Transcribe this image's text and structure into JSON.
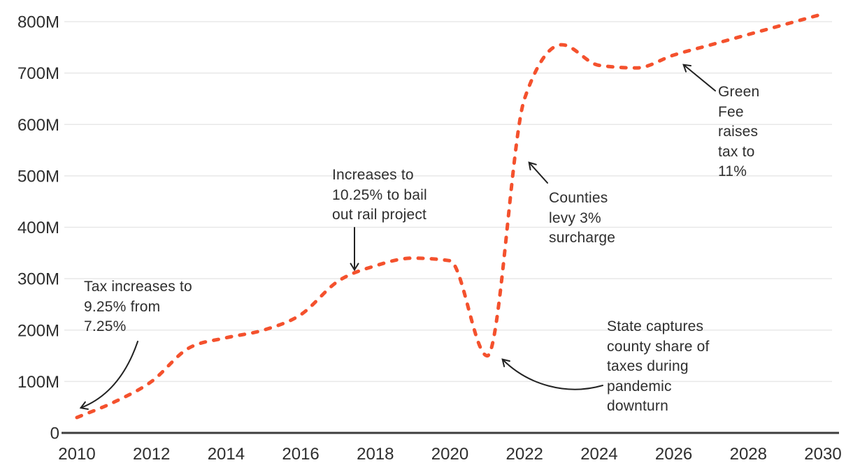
{
  "chart_data": {
    "type": "line",
    "title": "",
    "xlabel": "",
    "ylabel": "",
    "unit": "M",
    "x": [
      2010,
      2011,
      2012,
      2013,
      2014,
      2015,
      2016,
      2017,
      2018,
      2019,
      2020,
      2021,
      2022,
      2023,
      2024,
      2025,
      2026,
      2027,
      2028,
      2029,
      2030
    ],
    "series": [
      {
        "name": "tax-revenue",
        "line_style": "dashed",
        "color": "#F4512D",
        "values": [
          30,
          60,
          100,
          165,
          185,
          200,
          230,
          295,
          325,
          340,
          335,
          150,
          650,
          755,
          715,
          710,
          735,
          755,
          775,
          795,
          815
        ]
      }
    ],
    "x_tick_labels": [
      "2010",
      "2012",
      "2014",
      "2016",
      "2018",
      "2020",
      "2022",
      "2024",
      "2026",
      "2028",
      "2030"
    ],
    "x_tick_values": [
      2010,
      2012,
      2014,
      2016,
      2018,
      2020,
      2022,
      2024,
      2026,
      2028,
      2030
    ],
    "y_tick_labels": [
      "0",
      "100M",
      "200M",
      "300M",
      "400M",
      "500M",
      "600M",
      "700M",
      "800M"
    ],
    "y_tick_values": [
      0,
      100,
      200,
      300,
      400,
      500,
      600,
      700,
      800
    ],
    "xlim": [
      2010,
      2030
    ],
    "ylim": [
      0,
      830
    ],
    "grid": "horizontal",
    "legend": "none"
  },
  "annotations": [
    {
      "id": "tax-increase-925",
      "text": "Tax increases to\n9.25% from\n7.25%"
    },
    {
      "id": "rail-bailout",
      "text": "Increases to\n10.25% to bail\nout rail project"
    },
    {
      "id": "county-surcharge",
      "text": "Counties\nlevy 3%\nsurcharge"
    },
    {
      "id": "pandemic-capture",
      "text": "State captures\ncounty share of\ntaxes during\npandemic\ndownturn"
    },
    {
      "id": "green-fee",
      "text": "Green\nFee\nraises\ntax to\n11%"
    }
  ],
  "colors": {
    "line": "#F4512D",
    "grid": "#E8E8E8",
    "axis": "#3D3D3D",
    "text": "#2E2E2E",
    "arrow": "#222222"
  }
}
